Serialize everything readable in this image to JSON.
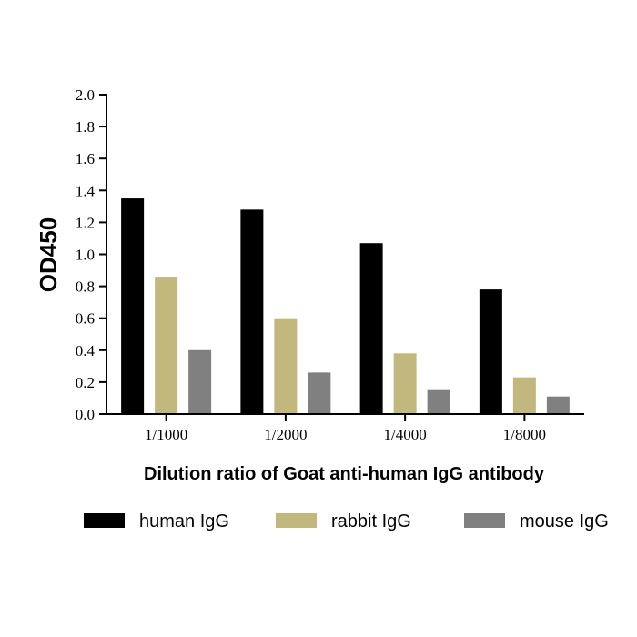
{
  "chart_data": {
    "type": "bar",
    "categories": [
      "1/1000",
      "1/2000",
      "1/4000",
      "1/8000"
    ],
    "series": [
      {
        "name": "human IgG",
        "color": "#000000",
        "values": [
          1.35,
          1.28,
          1.07,
          0.78
        ]
      },
      {
        "name": "rabbit IgG",
        "color": "#c2b77c",
        "values": [
          0.86,
          0.6,
          0.38,
          0.23
        ]
      },
      {
        "name": "mouse IgG",
        "color": "#808080",
        "values": [
          0.4,
          0.26,
          0.15,
          0.11
        ]
      }
    ],
    "title": "",
    "xlabel": "Dilution ratio of Goat anti-human IgG antibody",
    "ylabel": "OD450",
    "ylim": [
      0,
      2.0
    ],
    "yticks": [
      "0.0",
      "0.2",
      "0.4",
      "0.6",
      "0.8",
      "1.0",
      "1.2",
      "1.4",
      "1.6",
      "1.8",
      "2.0"
    ],
    "grid": false,
    "legend_position": "bottom"
  }
}
